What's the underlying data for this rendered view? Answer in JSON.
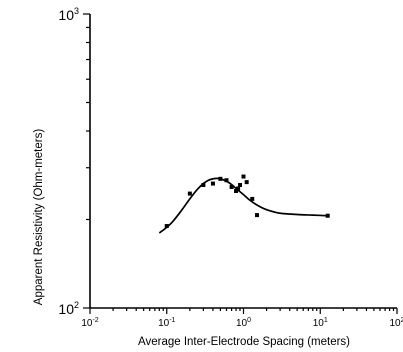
{
  "chart_data": {
    "type": "scatter",
    "title": "",
    "xlabel": "Average Inter-Electrode Spacing (meters)",
    "ylabel": "Apparent Resistivity (Ohm-meters)",
    "xscale": "log",
    "yscale": "log",
    "xlim": [
      0.01,
      100
    ],
    "ylim": [
      100,
      1000
    ],
    "x_ticks": [
      {
        "value": 0.01,
        "base": "10",
        "exp": "-2"
      },
      {
        "value": 0.1,
        "base": "10",
        "exp": "-1"
      },
      {
        "value": 1,
        "base": "10",
        "exp": "0"
      },
      {
        "value": 10,
        "base": "10",
        "exp": "1"
      },
      {
        "value": 100,
        "base": "10",
        "exp": "2"
      }
    ],
    "y_ticks": [
      {
        "value": 100,
        "base": "10",
        "exp": "2"
      },
      {
        "value": 1000,
        "base": "10",
        "exp": "3"
      }
    ],
    "grid": false,
    "legend": "none",
    "series": [
      {
        "kind": "points",
        "x": [
          0.1,
          0.2,
          0.3,
          0.4,
          0.5,
          0.6,
          0.7,
          0.8,
          0.85,
          0.9,
          1.0,
          1.1,
          1.3,
          1.5,
          12.5
        ],
        "y": [
          190,
          245,
          262,
          265,
          275,
          272,
          258,
          250,
          255,
          262,
          280,
          268,
          235,
          207,
          206
        ]
      },
      {
        "kind": "fitted-curve",
        "x": [
          0.08,
          0.1,
          0.12,
          0.15,
          0.2,
          0.25,
          0.3,
          0.35,
          0.4,
          0.45,
          0.5,
          0.6,
          0.7,
          0.8,
          1.0,
          1.2,
          1.5,
          2.0,
          3.0,
          5.0,
          8.0,
          12.5
        ],
        "y": [
          180,
          188,
          197,
          212,
          235,
          253,
          265,
          272,
          275,
          276,
          275,
          270,
          263,
          255,
          243,
          233,
          224,
          216,
          210,
          208,
          207,
          206
        ]
      }
    ]
  }
}
